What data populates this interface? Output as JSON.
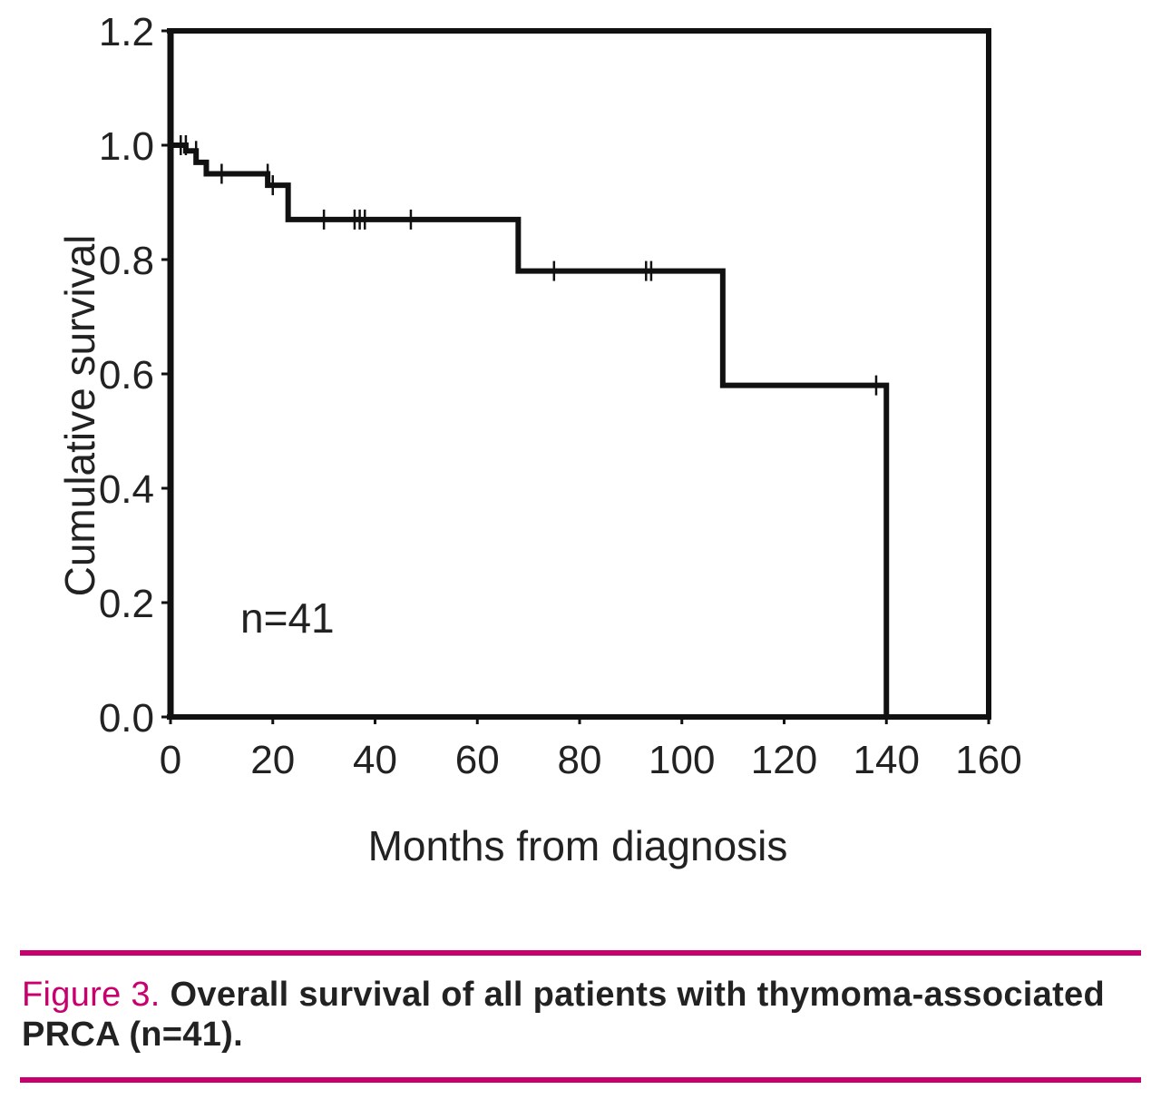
{
  "chart_data": {
    "type": "line",
    "subtype": "kaplan-meier-step",
    "title": "",
    "xlabel": "Months from diagnosis",
    "ylabel": "Cumulative survival",
    "xlim": [
      0,
      160
    ],
    "ylim": [
      0.0,
      1.2
    ],
    "xticks": [
      0,
      20,
      40,
      60,
      80,
      100,
      120,
      140,
      160
    ],
    "yticks": [
      "0.0",
      "0.2",
      "0.4",
      "0.6",
      "0.8",
      "1.0",
      "1.2"
    ],
    "annotation": "n=41",
    "series": [
      {
        "name": "Overall survival",
        "steps": [
          {
            "x": 0,
            "y": 1.0
          },
          {
            "x": 3,
            "y": 0.99
          },
          {
            "x": 5,
            "y": 0.97
          },
          {
            "x": 7,
            "y": 0.95
          },
          {
            "x": 19,
            "y": 0.93
          },
          {
            "x": 23,
            "y": 0.87
          },
          {
            "x": 68,
            "y": 0.78
          },
          {
            "x": 108,
            "y": 0.58
          },
          {
            "x": 140,
            "y": 0.0
          }
        ],
        "end_x": 140,
        "censored": [
          {
            "x": 2,
            "y": 1.0
          },
          {
            "x": 3,
            "y": 1.0
          },
          {
            "x": 5,
            "y": 0.99
          },
          {
            "x": 10,
            "y": 0.95
          },
          {
            "x": 19,
            "y": 0.95
          },
          {
            "x": 20,
            "y": 0.93
          },
          {
            "x": 30,
            "y": 0.87
          },
          {
            "x": 36,
            "y": 0.87
          },
          {
            "x": 37,
            "y": 0.87
          },
          {
            "x": 38,
            "y": 0.87
          },
          {
            "x": 47,
            "y": 0.87
          },
          {
            "x": 75,
            "y": 0.78
          },
          {
            "x": 93,
            "y": 0.78
          },
          {
            "x": 94,
            "y": 0.78
          },
          {
            "x": 138,
            "y": 0.58
          }
        ]
      }
    ],
    "colors": {
      "line": "#111111",
      "axis": "#111111",
      "text": "#222222"
    }
  },
  "caption": {
    "label": "Figure 3.",
    "text": "Overall survival of all patients with thymoma-associated PRCA (n=41).",
    "label_color": "#c8006e",
    "rule_color": "#c8006e"
  }
}
